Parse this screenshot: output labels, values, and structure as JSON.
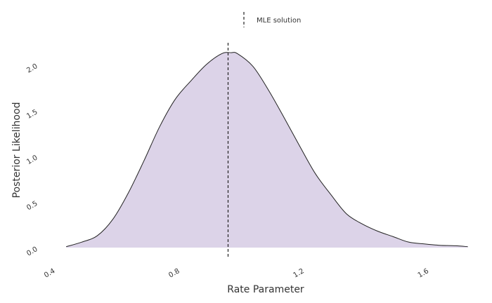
{
  "chart_data": {
    "type": "area",
    "xlabel": "Rate Parameter",
    "ylabel": "Posterior Likelihood",
    "xlim": [
      0.4,
      1.75
    ],
    "ylim": [
      0,
      2.2
    ],
    "x_ticks": [
      {
        "value": 0.4,
        "label": "0.4"
      },
      {
        "value": 0.8,
        "label": "0.8"
      },
      {
        "value": 1.2,
        "label": "1.2"
      },
      {
        "value": 1.6,
        "label": "1.6"
      }
    ],
    "y_ticks": [
      {
        "value": 0.0,
        "label": "0.0"
      },
      {
        "value": 0.5,
        "label": "0.5"
      },
      {
        "value": 1.0,
        "label": "1.0"
      },
      {
        "value": 1.5,
        "label": "1.5"
      },
      {
        "value": 2.0,
        "label": "2.0"
      }
    ],
    "grid": false,
    "fill_color": "#dcd3e8",
    "line_color": "#222222",
    "vline": {
      "x": 0.97,
      "label": "MLE solution",
      "style": "dashed"
    },
    "legend_position": "top-center",
    "series": [
      {
        "x": [
          0.45,
          0.5,
          0.55,
          0.6,
          0.65,
          0.7,
          0.75,
          0.8,
          0.85,
          0.9,
          0.95,
          0.98,
          1.0,
          1.05,
          1.1,
          1.15,
          1.2,
          1.25,
          1.3,
          1.35,
          1.4,
          1.45,
          1.5,
          1.55,
          1.6,
          1.65,
          1.7,
          1.74
        ],
        "y": [
          0.01,
          0.06,
          0.13,
          0.31,
          0.6,
          0.95,
          1.32,
          1.62,
          1.82,
          2.0,
          2.12,
          2.13,
          2.12,
          1.98,
          1.72,
          1.42,
          1.11,
          0.81,
          0.58,
          0.37,
          0.26,
          0.18,
          0.12,
          0.06,
          0.04,
          0.025,
          0.02,
          0.01
        ]
      }
    ]
  }
}
